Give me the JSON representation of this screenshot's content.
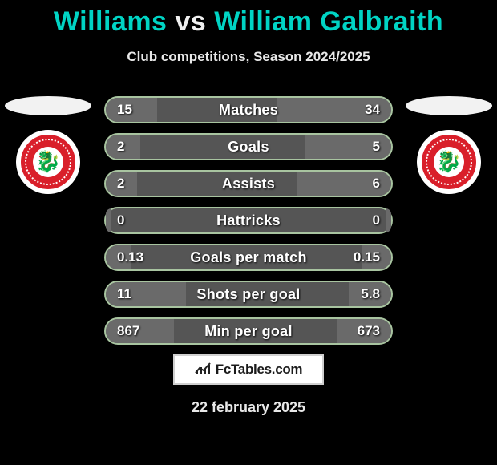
{
  "title": {
    "player1": "Williams",
    "vs": "vs",
    "player2": "William Galbraith"
  },
  "subtitle": "Club competitions, Season 2024/2025",
  "crest": {
    "bg_color": "#d91f2a",
    "border_color": "#ffffff",
    "glyph": "🐉"
  },
  "stats": {
    "rows": [
      {
        "label": "Matches",
        "left": "15",
        "right": "34",
        "left_pct": 18,
        "right_pct": 40
      },
      {
        "label": "Goals",
        "left": "2",
        "right": "5",
        "left_pct": 12,
        "right_pct": 30
      },
      {
        "label": "Assists",
        "left": "2",
        "right": "6",
        "left_pct": 11,
        "right_pct": 33
      },
      {
        "label": "Hattricks",
        "left": "0",
        "right": "0",
        "left_pct": 2,
        "right_pct": 2
      },
      {
        "label": "Goals per match",
        "left": "0.13",
        "right": "0.15",
        "left_pct": 9,
        "right_pct": 10
      },
      {
        "label": "Shots per goal",
        "left": "11",
        "right": "5.8",
        "left_pct": 28,
        "right_pct": 15
      },
      {
        "label": "Min per goal",
        "left": "867",
        "right": "673",
        "left_pct": 24,
        "right_pct": 19
      }
    ],
    "row_bg": "#555555",
    "bar_fill": "#6a6a6a",
    "border_color": "#a8c4a0",
    "label_fontsize": 18,
    "value_fontsize": 17
  },
  "footer": {
    "brand": "FcTables.com",
    "icon": "📈"
  },
  "date": "22 february 2025",
  "background_color": "#000000"
}
